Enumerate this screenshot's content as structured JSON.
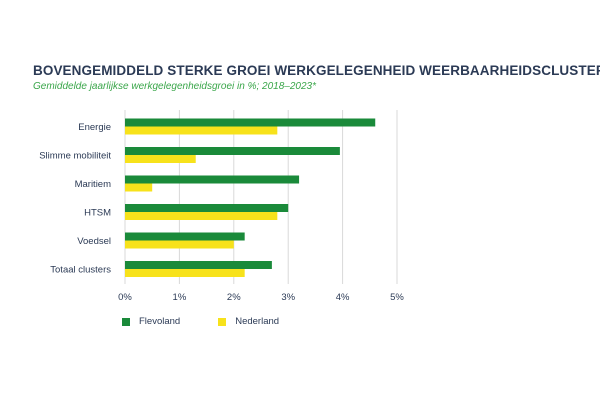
{
  "chart_data": {
    "type": "bar",
    "orientation": "horizontal",
    "title": "BOVENGEMIDDELD STERKE GROEI WERKGELEGENHEID WEERBAARHEIDSCLUSTERS",
    "subtitle": "Gemiddelde jaarlijkse werkgelegenheidsgroei in %; 2018–2023*",
    "categories": [
      "Energie",
      "Slimme mobiliteit",
      "Maritiem",
      "HTSM",
      "Voedsel",
      "Totaal  clusters"
    ],
    "series": [
      {
        "name": "Flevoland",
        "color": "#1a8a3a",
        "values": [
          4.6,
          3.95,
          3.2,
          3.0,
          2.2,
          2.7
        ]
      },
      {
        "name": "Nederland",
        "color": "#f7e21b",
        "values": [
          2.8,
          1.3,
          0.5,
          2.8,
          2.0,
          2.2
        ]
      }
    ],
    "xlim": [
      0,
      5
    ],
    "xticks": [
      "0%",
      "1%",
      "2%",
      "3%",
      "4%",
      "5%"
    ],
    "grid": true,
    "legend_position": "bottom-left"
  }
}
